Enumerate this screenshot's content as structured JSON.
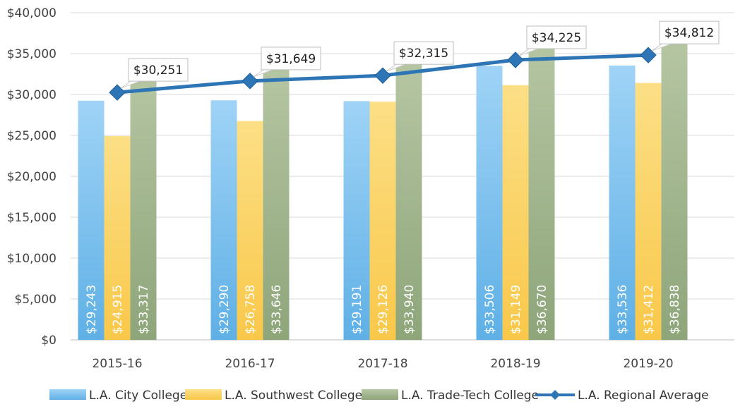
{
  "chart_data": {
    "type": "bar",
    "title": "",
    "xlabel": "",
    "ylabel": "",
    "ylim": [
      0,
      40000
    ],
    "yticks": [
      0,
      5000,
      10000,
      15000,
      20000,
      25000,
      30000,
      35000,
      40000
    ],
    "ytick_labels": [
      "$0",
      "$5,000",
      "$10,000",
      "$15,000",
      "$20,000",
      "$25,000",
      "$30,000",
      "$35,000",
      "$40,000"
    ],
    "grid": true,
    "legend_position": "bottom",
    "categories": [
      "2015-16",
      "2016-17",
      "2017-18",
      "2018-19",
      "2019-20"
    ],
    "series": [
      {
        "name": "L.A. City College",
        "kind": "bar",
        "color": "#7cc0ec",
        "values": [
          29243,
          29290,
          29191,
          33506,
          33536
        ],
        "labels": [
          "$29,243",
          "$29,290",
          "$29,191",
          "$33,506",
          "$33,536"
        ]
      },
      {
        "name": "L.A. Southwest College",
        "kind": "bar",
        "color": "#fbd267",
        "values": [
          24915,
          26758,
          29126,
          31149,
          31412
        ],
        "labels": [
          "$24,915",
          "$26,758",
          "$29,126",
          "$31,149",
          "$31,412"
        ]
      },
      {
        "name": "L.A. Trade-Tech College",
        "kind": "bar",
        "color": "#a3b68f",
        "values": [
          33317,
          33646,
          33940,
          36670,
          36838
        ],
        "labels": [
          "$33,317",
          "$33,646",
          "$33,940",
          "$36,670",
          "$36,838"
        ]
      },
      {
        "name": "L.A. Regional Average",
        "kind": "line",
        "color": "#2e75b6",
        "values": [
          30251,
          31649,
          32315,
          34225,
          34812
        ],
        "labels": [
          "$30,251",
          "$31,649",
          "$32,315",
          "$34,225",
          "$34,812"
        ]
      }
    ]
  }
}
